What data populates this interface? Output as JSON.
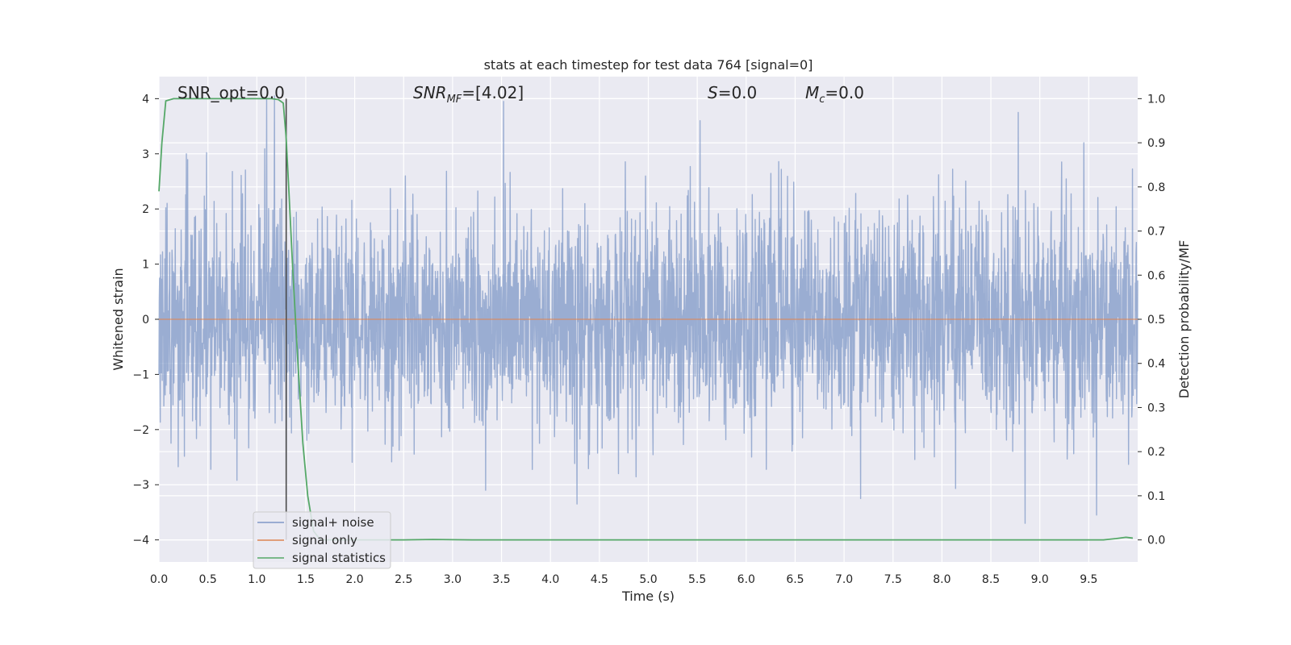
{
  "chart_data": {
    "type": "line",
    "title": "stats at each timestep for test data 764 [signal=0]",
    "xlabel": "Time (s)",
    "ylabel": "Whitened strain",
    "ylabel_right": "Detection probability/MF",
    "xlim": [
      0,
      10
    ],
    "ylim": [
      -4.4,
      4.4
    ],
    "ylim_right": [
      -0.05,
      1.05
    ],
    "x_ticks": [
      "0.0",
      "0.5",
      "1.0",
      "1.5",
      "2.0",
      "2.5",
      "3.0",
      "3.5",
      "4.0",
      "4.5",
      "5.0",
      "5.5",
      "6.0",
      "6.5",
      "7.0",
      "7.5",
      "8.0",
      "8.5",
      "9.0",
      "9.5"
    ],
    "y_ticks": [
      "−4",
      "−3",
      "−2",
      "−1",
      "0",
      "1",
      "2",
      "3",
      "4"
    ],
    "y_right_ticks": [
      "0.0",
      "0.1",
      "0.2",
      "0.3",
      "0.4",
      "0.5",
      "0.6",
      "0.7",
      "0.8",
      "0.9",
      "1.0"
    ],
    "grid": true,
    "legend_position": "bottom-left",
    "annotations": {
      "snr_opt": "SNR_opt=0.0",
      "snr_mf_main": "SNR",
      "snr_mf_sub": "MF",
      "snr_mf_value": "=[4.02]",
      "s_main": "S",
      "s_value": "=0.0",
      "mc_main": "M",
      "mc_sub": "c",
      "mc_value": "=0.0"
    },
    "vertical_marker_x": 1.3,
    "series": [
      {
        "name": "signal+ noise",
        "color": "#7f98c7",
        "kind": "noise",
        "sample_count": 3000,
        "typical_envelope": [
          -2.0,
          2.0
        ],
        "peaks": [
          {
            "x": 1.1,
            "y": 4.0
          },
          {
            "x": 1.18,
            "y": 4.05
          },
          {
            "x": 3.52,
            "y": 3.95
          },
          {
            "x": 5.53,
            "y": 3.6
          },
          {
            "x": 8.78,
            "y": 3.75
          },
          {
            "x": 0.28,
            "y": 3.0
          },
          {
            "x": 9.45,
            "y": 3.2
          },
          {
            "x": 4.27,
            "y": -3.35
          },
          {
            "x": 8.85,
            "y": -3.7
          },
          {
            "x": 9.58,
            "y": -3.55
          },
          {
            "x": 1.3,
            "y": -3.4
          },
          {
            "x": 7.17,
            "y": -3.25
          }
        ]
      },
      {
        "name": "signal only",
        "color": "#dd8452",
        "x": [
          0,
          10
        ],
        "y": [
          0,
          0
        ]
      },
      {
        "name": "signal statistics",
        "color": "#55a868",
        "axis": "right",
        "x": [
          0.0,
          0.03,
          0.07,
          0.15,
          0.3,
          0.6,
          1.0,
          1.15,
          1.22,
          1.27,
          1.3,
          1.33,
          1.37,
          1.42,
          1.47,
          1.52,
          1.58,
          1.65,
          1.72,
          2.0,
          2.5,
          2.8,
          3.2,
          5.0,
          7.0,
          9.0,
          9.65,
          9.78,
          9.88,
          9.95
        ],
        "y": [
          0.79,
          0.9,
          0.995,
          1.0,
          1.0,
          1.0,
          1.0,
          1.0,
          0.998,
          0.99,
          0.91,
          0.78,
          0.6,
          0.4,
          0.22,
          0.1,
          0.02,
          0.0,
          0.0,
          0.0,
          0.0,
          0.001,
          0.0,
          0.0,
          0.0,
          0.0,
          0.0,
          0.003,
          0.006,
          0.004
        ]
      }
    ]
  }
}
